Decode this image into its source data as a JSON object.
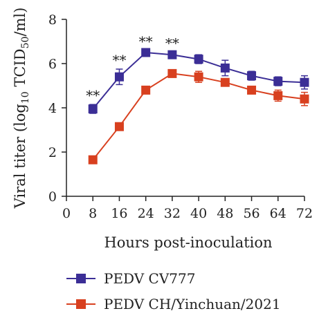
{
  "chart_data": {
    "type": "line",
    "x": [
      8,
      16,
      24,
      32,
      40,
      48,
      56,
      64,
      72
    ],
    "xlabel": "Hours post-inoculation",
    "ylabel_parts": [
      "Viral titer (log",
      "10",
      " TCID",
      "50",
      "/ml)"
    ],
    "xlim": [
      0,
      72
    ],
    "ylim": [
      0,
      8
    ],
    "xticks": [
      0,
      8,
      16,
      24,
      32,
      40,
      48,
      56,
      64,
      72
    ],
    "yticks": [
      0,
      2,
      4,
      6,
      8
    ],
    "grid": false,
    "legend_position": "bottom",
    "series": [
      {
        "name": "PEDV CV777",
        "color": "#3b2e96",
        "marker": "square",
        "values": [
          3.95,
          5.4,
          6.5,
          6.4,
          6.2,
          5.8,
          5.45,
          5.2,
          5.15
        ],
        "error": [
          0.2,
          0.35,
          0.1,
          0.12,
          0.2,
          0.35,
          0.2,
          0.2,
          0.3
        ]
      },
      {
        "name": "PEDV CH/Yinchuan/2021",
        "color": "#d8401f",
        "marker": "square",
        "values": [
          1.65,
          3.15,
          4.8,
          5.55,
          5.4,
          5.15,
          4.8,
          4.55,
          4.4
        ],
        "error": [
          0.05,
          0.08,
          0.1,
          0.1,
          0.25,
          0.15,
          0.12,
          0.25,
          0.3
        ]
      }
    ],
    "annotations": [
      {
        "x": 8,
        "text": "**"
      },
      {
        "x": 16,
        "text": "**"
      },
      {
        "x": 24,
        "text": "**"
      },
      {
        "x": 32,
        "text": "**"
      }
    ]
  }
}
